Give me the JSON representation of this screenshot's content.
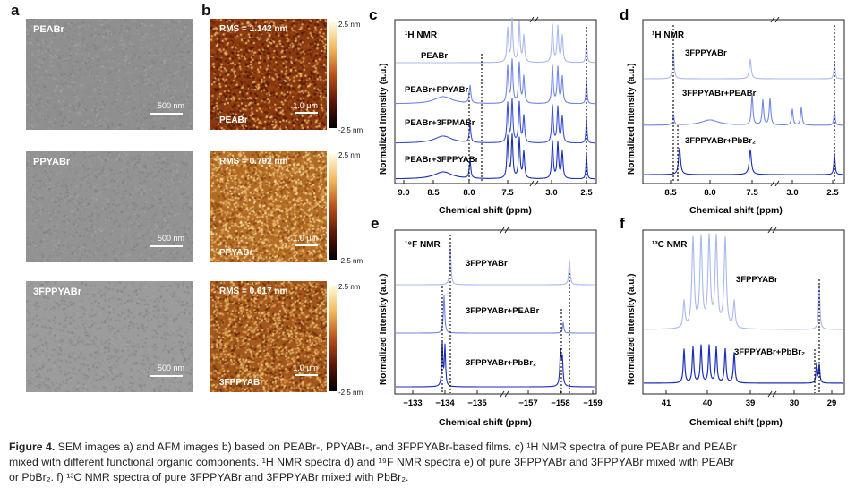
{
  "panels": {
    "a": {
      "letter": "a",
      "images": [
        {
          "label": "PEABr",
          "scalebar": "500 nm"
        },
        {
          "label": "PPYABr",
          "scalebar": "500 nm"
        },
        {
          "label": "3FPPYABr",
          "scalebar": "500 nm"
        }
      ]
    },
    "b": {
      "letter": "b",
      "images": [
        {
          "rms": "RMS = 1.142 nm",
          "label": "PEABr",
          "scalebar": "1.0 μm",
          "cb_top": "2.5 nm",
          "cb_bottom": "-2.5 nm"
        },
        {
          "rms": "RMS = 0.792 nm",
          "label": "PPYABr",
          "scalebar": "1.0 μm",
          "cb_top": "2.5 nm",
          "cb_bottom": "-2.5 nm"
        },
        {
          "rms": "RMS = 0.617 nm",
          "label": "3FPPYABr",
          "scalebar": "1.0 μm",
          "cb_top": "2.5 nm",
          "cb_bottom": "-2.5 nm"
        }
      ]
    },
    "c": {
      "letter": "c",
      "nmr": "¹H NMR",
      "ylabel": "Normalized Intensity (a.u.)",
      "xlabel": "Chemical shift (ppm)",
      "ticks": [
        "9.0",
        "8.5",
        "8.0",
        "7.5",
        "3.0",
        "2.5"
      ],
      "traces": [
        "PEABr",
        "PEABr+PPYABr",
        "PEABr+3FPMABr",
        "PEABr+3FPPYABr"
      ]
    },
    "d": {
      "letter": "d",
      "nmr": "¹H NMR",
      "ylabel": "Normalized Intensity (a.u.)",
      "xlabel": "Chemical shift (ppm)",
      "ticks": [
        "8.5",
        "8.0",
        "7.5",
        "3.0",
        "2.5"
      ],
      "traces": [
        "3FPPYABr",
        "3FPPYABr+PEABr",
        "3FPPYABr+PbBr₂"
      ]
    },
    "e": {
      "letter": "e",
      "nmr": "¹⁹F NMR",
      "ylabel": "Normalized Intensity (a.u.)",
      "xlabel": "Chemical shift (ppm)",
      "ticks": [
        "−133",
        "−134",
        "−135",
        "−157",
        "−158",
        "−159"
      ],
      "traces": [
        "3FPPYABr",
        "3FPPYABr+PEABr",
        "3FPPYABr+PbBr₂"
      ]
    },
    "f": {
      "letter": "f",
      "nmr": "¹³C NMR",
      "ylabel": "Normalized Intensity (a.u.)",
      "xlabel": "Chemical shift (ppm)",
      "ticks": [
        "41",
        "40",
        "39",
        "30",
        "29"
      ],
      "traces": [
        "3FPPYABr",
        "3FPPYABr+PbBr₂"
      ]
    }
  },
  "caption": {
    "label": "Figure 4.",
    "line1": "SEM images a) and AFM images b) based on PEABr-, PPYABr-, and 3FPPYABr-based films. c) ¹H NMR spectra of pure PEABr and PEABr",
    "line2": "mixed with different functional organic components. ¹H NMR spectra d) and ¹⁹F NMR spectra e) of pure 3FPPYABr and 3FPPYABr mixed with PEABr",
    "line3": "or PbBr₂. f) ¹³C NMR spectra of pure 3FPPYABr and 3FPPYABr mixed with PbBr₂."
  },
  "colors": {
    "light": "#aab8ee",
    "mid": "#6f86e6",
    "dark": "#3a4fd6",
    "darkest": "#1a2fb8"
  }
}
